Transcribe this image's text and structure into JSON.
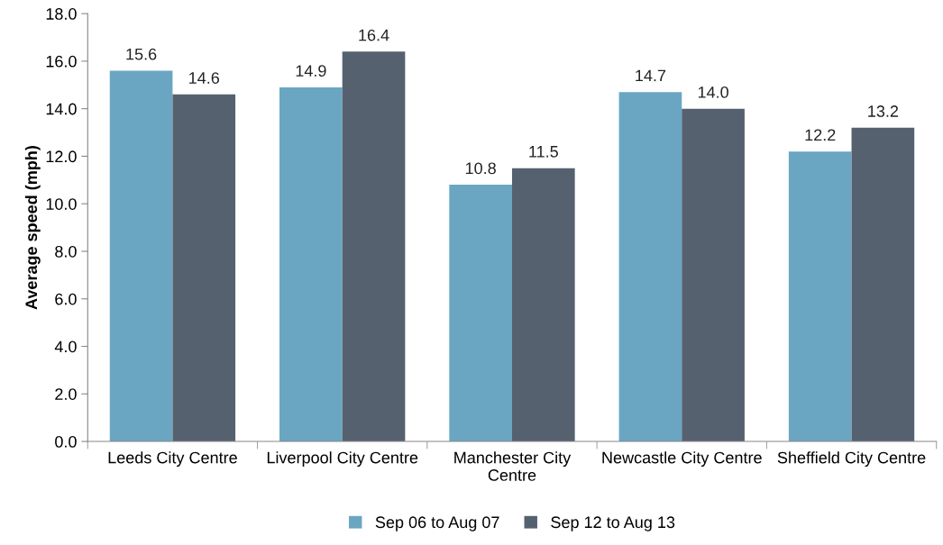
{
  "chart_data": {
    "type": "bar",
    "ylabel": "Average speed (mph)",
    "categories": [
      "Leeds City Centre",
      "Liverpool City Centre",
      "Manchester City Centre",
      "Newcastle City Centre",
      "Sheffield City Centre"
    ],
    "series": [
      {
        "name": "Sep 06 to Aug 07",
        "color": "#6aa6c2",
        "values": [
          15.6,
          14.9,
          10.8,
          14.7,
          12.2
        ],
        "value_labels": [
          "15.6",
          "14.9",
          "10.8",
          "14.7",
          "12.2"
        ]
      },
      {
        "name": "Sep 12 to Aug 13",
        "color": "#566170",
        "values": [
          14.6,
          16.4,
          11.5,
          14.0,
          13.2
        ],
        "value_labels": [
          "14.6",
          "16.4",
          "11.5",
          "14.0",
          "13.2"
        ]
      }
    ],
    "ylim": [
      0,
      18
    ],
    "yticks": [
      {
        "value": 0,
        "label": "0.0"
      },
      {
        "value": 2,
        "label": "2.0"
      },
      {
        "value": 4,
        "label": "4.0"
      },
      {
        "value": 6,
        "label": "6.0"
      },
      {
        "value": 8,
        "label": "8.0"
      },
      {
        "value": 10,
        "label": "10.0"
      },
      {
        "value": 12,
        "label": "12.0"
      },
      {
        "value": 14,
        "label": "14.0"
      },
      {
        "value": 16,
        "label": "16.0"
      },
      {
        "value": 18,
        "label": "18.0"
      }
    ],
    "legend": "bottom",
    "grid": false
  }
}
